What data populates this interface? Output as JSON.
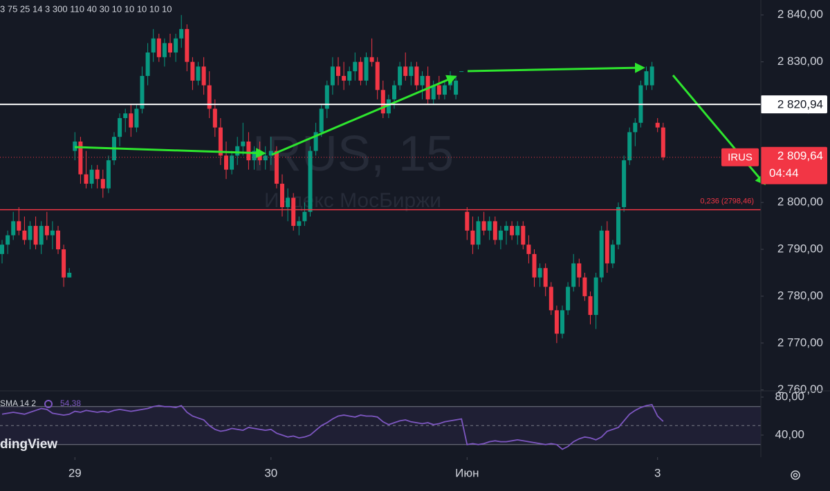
{
  "chart_data": {
    "type": "candlestick",
    "header": "3 75 25 14 3 300 110 40 30 10 10 10 10 10",
    "watermark": "IRUS, 15",
    "watermark_subtitle": "Индекс МосБиржи",
    "logo": "dingView",
    "ticker": "IRUS",
    "countdown": "04:44",
    "up_color": "#089981",
    "down_color": "#f23645",
    "xlim": [
      -0.37,
      135.43
    ],
    "xticks": [
      {
        "value": 13,
        "label": "29"
      },
      {
        "value": 48,
        "label": "30"
      },
      {
        "value": 83,
        "label": "Июн"
      },
      {
        "value": 117,
        "label": "3"
      }
    ],
    "ylim": [
      2759.8,
      2843.2
    ],
    "yticks": [
      {
        "value": 2760,
        "label": "2 760,00"
      },
      {
        "value": 2770,
        "label": "2 770,00"
      },
      {
        "value": 2780,
        "label": "2 780,00"
      },
      {
        "value": 2790,
        "label": "2 790,00"
      },
      {
        "value": 2800,
        "label": "2 800,00"
      },
      {
        "value": 2810,
        "label": "2 810,00"
      },
      {
        "value": 2820,
        "label": "2 820,00"
      },
      {
        "value": 2830,
        "label": "2 830,00"
      },
      {
        "value": 2840,
        "label": "2 840,00"
      }
    ],
    "horizontal_line": {
      "value": 2820.94,
      "label": "2 820,94",
      "color": "#ffffff"
    },
    "fib_line": {
      "value": 2798.46,
      "label": "0,236 (2798,46)",
      "color": "#f23645"
    },
    "last_price": {
      "value": 2809.64,
      "label": "2 809,64",
      "color": "#f23645"
    },
    "ohlc": [
      [
        2789,
        2792,
        2787,
        2791
      ],
      [
        2791,
        2794,
        2789,
        2793
      ],
      [
        2793,
        2798,
        2792,
        2796
      ],
      [
        2796,
        2799,
        2793,
        2794
      ],
      [
        2794,
        2797,
        2791,
        2792
      ],
      [
        2792,
        2796,
        2790,
        2795
      ],
      [
        2795,
        2797,
        2790,
        2791
      ],
      [
        2791,
        2796,
        2789,
        2795
      ],
      [
        2795,
        2798,
        2792,
        2793
      ],
      [
        2793,
        2796,
        2790,
        2794
      ],
      [
        2794,
        2795,
        2789,
        2790
      ],
      [
        2790,
        2791,
        2782,
        2784
      ],
      [
        2784,
        2786,
        2784,
        2785
      ],
      [
        2811,
        2815,
        2809,
        2813
      ],
      [
        2813,
        2814,
        2804,
        2806
      ],
      [
        2806,
        2811,
        2803,
        2804
      ],
      [
        2804,
        2808,
        2803,
        2807
      ],
      [
        2807,
        2808,
        2803,
        2805
      ],
      [
        2805,
        2807,
        2801,
        2803
      ],
      [
        2803,
        2810,
        2802,
        2809
      ],
      [
        2809,
        2815,
        2808,
        2814
      ],
      [
        2814,
        2819,
        2812,
        2818
      ],
      [
        2818,
        2820,
        2815,
        2819
      ],
      [
        2819,
        2821,
        2814,
        2816
      ],
      [
        2816,
        2821,
        2815,
        2820
      ],
      [
        2820,
        2829,
        2819,
        2827
      ],
      [
        2827,
        2834,
        2825,
        2832
      ],
      [
        2832,
        2837,
        2830,
        2835
      ],
      [
        2835,
        2836,
        2830,
        2831
      ],
      [
        2831,
        2835,
        2829,
        2834
      ],
      [
        2834,
        2836,
        2831,
        2832
      ],
      [
        2832,
        2836,
        2830,
        2835
      ],
      [
        2835,
        2840,
        2833,
        2837
      ],
      [
        2837,
        2838,
        2828,
        2830
      ],
      [
        2830,
        2831,
        2824,
        2826
      ],
      [
        2826,
        2830,
        2825,
        2829
      ],
      [
        2829,
        2831,
        2823,
        2825
      ],
      [
        2825,
        2828,
        2818,
        2820
      ],
      [
        2820,
        2822,
        2814,
        2816
      ],
      [
        2816,
        2818,
        2808,
        2810
      ],
      [
        2810,
        2813,
        2805,
        2807
      ],
      [
        2807,
        2811,
        2806,
        2810
      ],
      [
        2810,
        2814,
        2808,
        2812
      ],
      [
        2812,
        2817,
        2810,
        2813
      ],
      [
        2813,
        2815,
        2807,
        2809
      ],
      [
        2809,
        2812,
        2807,
        2811
      ],
      [
        2811,
        2813,
        2808,
        2809
      ],
      [
        2809,
        2812,
        2807,
        2810
      ],
      [
        2810,
        2814,
        2808,
        2811
      ],
      [
        2811,
        2812,
        2803,
        2804
      ],
      [
        2804,
        2806,
        2797,
        2799
      ],
      [
        2799,
        2803,
        2796,
        2801
      ],
      [
        2801,
        2802,
        2794,
        2795
      ],
      [
        2795,
        2797,
        2793,
        2796
      ],
      [
        2796,
        2800,
        2795,
        2798
      ],
      [
        2798,
        2812,
        2797,
        2811
      ],
      [
        2811,
        2817,
        2810,
        2815
      ],
      [
        2815,
        2821,
        2814,
        2820
      ],
      [
        2820,
        2826,
        2818,
        2825
      ],
      [
        2825,
        2831,
        2823,
        2829
      ],
      [
        2829,
        2831,
        2825,
        2827
      ],
      [
        2827,
        2830,
        2824,
        2826
      ],
      [
        2826,
        2829,
        2825,
        2828
      ],
      [
        2828,
        2832,
        2826,
        2830
      ],
      [
        2830,
        2831,
        2825,
        2826
      ],
      [
        2826,
        2832,
        2825,
        2831
      ],
      [
        2831,
        2835,
        2829,
        2830
      ],
      [
        2830,
        2831,
        2822,
        2824
      ],
      [
        2824,
        2826,
        2818,
        2819
      ],
      [
        2819,
        2823,
        2818,
        2822
      ],
      [
        2822,
        2826,
        2820,
        2825
      ],
      [
        2825,
        2830,
        2824,
        2829
      ],
      [
        2829,
        2832,
        2826,
        2827
      ],
      [
        2827,
        2830,
        2825,
        2829
      ],
      [
        2829,
        2830,
        2824,
        2825
      ],
      [
        2825,
        2828,
        2822,
        2827
      ],
      [
        2827,
        2829,
        2821,
        2822
      ],
      [
        2822,
        2826,
        2821,
        2825
      ],
      [
        2825,
        2827,
        2822,
        2823
      ],
      [
        2823,
        2826,
        2822,
        2825
      ],
      [
        2825,
        2828,
        2824,
        2827
      ],
      [
        2823,
        2827,
        2822,
        2826
      ],
      [
        2828,
        2828,
        2828,
        2828
      ],
      [
        2798,
        2799,
        2792,
        2794
      ],
      [
        2794,
        2797,
        2789,
        2791
      ],
      [
        2791,
        2797,
        2790,
        2796
      ],
      [
        2796,
        2798,
        2793,
        2794
      ],
      [
        2794,
        2797,
        2792,
        2796
      ],
      [
        2796,
        2797,
        2791,
        2792
      ],
      [
        2792,
        2795,
        2790,
        2794
      ],
      [
        2794,
        2796,
        2791,
        2795
      ],
      [
        2795,
        2796,
        2792,
        2793
      ],
      [
        2793,
        2796,
        2791,
        2795
      ],
      [
        2795,
        2796,
        2790,
        2791
      ],
      [
        2791,
        2793,
        2787,
        2789
      ],
      [
        2789,
        2790,
        2782,
        2784
      ],
      [
        2784,
        2787,
        2782,
        2786
      ],
      [
        2786,
        2787,
        2780,
        2782
      ],
      [
        2782,
        2783,
        2776,
        2777
      ],
      [
        2777,
        2778,
        2770,
        2772
      ],
      [
        2772,
        2778,
        2771,
        2777
      ],
      [
        2777,
        2783,
        2776,
        2782
      ],
      [
        2782,
        2789,
        2781,
        2787
      ],
      [
        2787,
        2788,
        2782,
        2784
      ],
      [
        2784,
        2785,
        2779,
        2780
      ],
      [
        2780,
        2781,
        2774,
        2776
      ],
      [
        2776,
        2785,
        2773,
        2784
      ],
      [
        2784,
        2795,
        2783,
        2794
      ],
      [
        2794,
        2796,
        2785,
        2787
      ],
      [
        2787,
        2792,
        2786,
        2791
      ],
      [
        2791,
        2800,
        2790,
        2799
      ],
      [
        2799,
        2810,
        2798,
        2809
      ],
      [
        2809,
        2816,
        2808,
        2815
      ],
      [
        2815,
        2818,
        2812,
        2817
      ],
      [
        2817,
        2826,
        2816,
        2825
      ],
      [
        2825,
        2829,
        2824,
        2828
      ],
      [
        2825,
        2830,
        2824,
        2829
      ],
      [
        2817,
        2818,
        2815,
        2816
      ],
      [
        2816,
        2817,
        2809,
        2809.64
      ]
    ],
    "rsi": {
      "title": "SMA 14 2",
      "color": "#7e57c2",
      "value_label": "54,38",
      "ylim": [
        20,
        86
      ],
      "yticks": [
        {
          "value": 80,
          "label": "80,00"
        },
        {
          "value": 40,
          "label": "40,00"
        }
      ],
      "levels": [
        70,
        50,
        30
      ],
      "values": [
        62,
        63,
        64,
        63,
        62,
        64,
        66,
        68,
        67,
        63,
        62,
        61,
        62,
        65,
        64,
        66,
        65,
        64,
        65,
        64,
        66,
        67,
        66,
        65,
        66,
        67,
        68,
        70,
        71,
        70,
        70,
        69,
        71,
        64,
        60,
        58,
        56,
        50,
        46,
        44,
        45,
        47,
        46,
        45,
        48,
        47,
        46,
        45,
        46,
        42,
        40,
        38,
        39,
        37,
        38,
        40,
        45,
        50,
        53,
        57,
        60,
        61,
        60,
        59,
        61,
        60,
        60,
        59,
        54,
        51,
        53,
        55,
        56,
        54,
        53,
        52,
        53,
        51,
        52,
        54,
        55,
        56,
        57,
        30,
        31,
        30,
        31,
        33,
        34,
        33,
        33,
        34,
        35,
        34,
        33,
        32,
        31,
        30,
        31,
        30,
        25,
        28,
        33,
        36,
        38,
        37,
        35,
        38,
        44,
        46,
        48,
        55,
        62,
        66,
        69,
        71,
        72,
        60,
        54.38
      ]
    }
  }
}
